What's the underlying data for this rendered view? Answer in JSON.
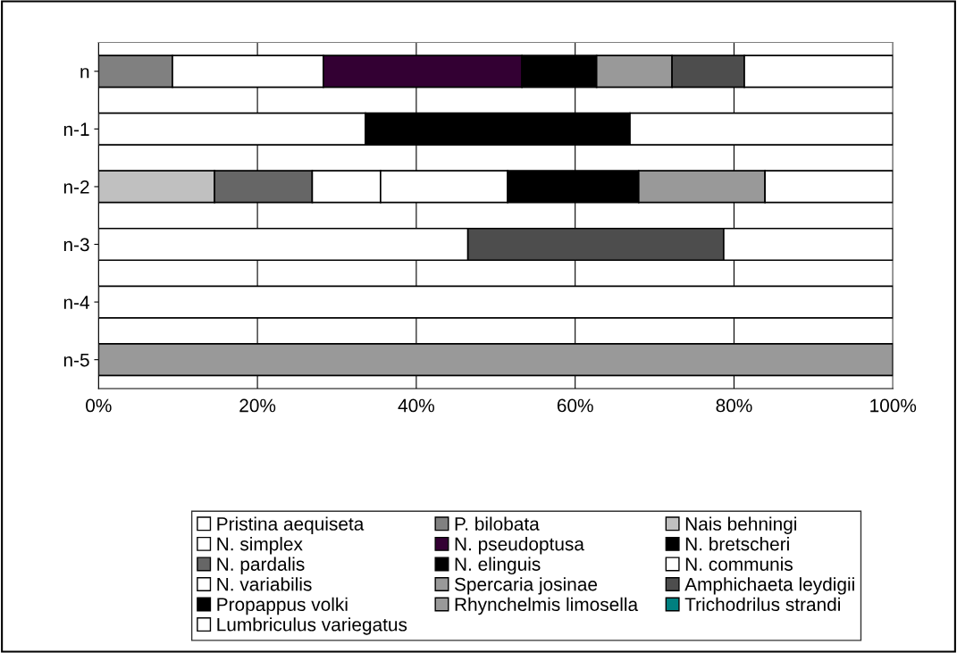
{
  "chart_data": {
    "type": "bar",
    "orientation": "horizontal",
    "stacked": true,
    "categories": [
      "n",
      "n-1",
      "n-2",
      "n-3",
      "n-4",
      "n-5"
    ],
    "xlim": [
      0,
      100
    ],
    "xticks": [
      {
        "value": 0,
        "label": "0%"
      },
      {
        "value": 20,
        "label": "20%"
      },
      {
        "value": 40,
        "label": "40%"
      },
      {
        "value": 60,
        "label": "60%"
      },
      {
        "value": 80,
        "label": "80%"
      },
      {
        "value": 100,
        "label": "100%"
      }
    ],
    "grid": "x",
    "legend": "bottom",
    "series": [
      {
        "name": "Pristina aequiseta",
        "color": "#ffffff",
        "values": [
          null,
          33.6,
          null,
          46.5,
          100,
          null
        ]
      },
      {
        "name": "P. bilobata",
        "color": "#808080",
        "values": [
          9.3,
          null,
          null,
          null,
          null,
          null
        ]
      },
      {
        "name": "Nais behningi",
        "color": "#c0c0c0",
        "values": [
          null,
          null,
          14.6,
          null,
          null,
          null
        ]
      },
      {
        "name": "N. simplex",
        "color": "#ffffff",
        "values": [
          19.0,
          null,
          null,
          null,
          null,
          null
        ]
      },
      {
        "name": "N. pseudoptusa",
        "color": "#330033",
        "values": [
          25.0,
          null,
          null,
          null,
          null,
          null
        ]
      },
      {
        "name": "N. bretscheri",
        "color": "#000000",
        "values": [
          9.4,
          null,
          null,
          null,
          null,
          null
        ]
      },
      {
        "name": "N. pardalis",
        "color": "#666666",
        "values": [
          null,
          null,
          12.3,
          null,
          null,
          null
        ]
      },
      {
        "name": "N. elinguis",
        "color": "#000000",
        "values": [
          null,
          33.3,
          null,
          null,
          null,
          null
        ]
      },
      {
        "name": "N. communis",
        "color": "#ffffff",
        "values": [
          null,
          null,
          8.6,
          null,
          null,
          null
        ]
      },
      {
        "name": "N. variabilis",
        "color": "#ffffff",
        "values": [
          null,
          null,
          16.0,
          null,
          null,
          null
        ]
      },
      {
        "name": "Spercaria josinae",
        "color": "#999999",
        "values": [
          9.5,
          null,
          null,
          null,
          null,
          100
        ]
      },
      {
        "name": "Amphichaeta leydigii",
        "color": "#4d4d4d",
        "values": [
          9.1,
          null,
          null,
          32.2,
          null,
          null
        ]
      },
      {
        "name": "Propappus volki",
        "color": "#000000",
        "values": [
          null,
          null,
          16.5,
          null,
          null,
          null
        ]
      },
      {
        "name": "Rhynchelmis limosella",
        "color": "#999999",
        "values": [
          null,
          null,
          15.9,
          null,
          null,
          null
        ]
      },
      {
        "name": "Trichodrilus strandi",
        "color": "#008080",
        "values": [
          null,
          null,
          null,
          null,
          null,
          null
        ]
      },
      {
        "name": "Lumbriculus variegatus",
        "color": "#ffffff",
        "values": [
          18.7,
          33.1,
          16.1,
          21.3,
          null,
          null
        ]
      }
    ]
  }
}
